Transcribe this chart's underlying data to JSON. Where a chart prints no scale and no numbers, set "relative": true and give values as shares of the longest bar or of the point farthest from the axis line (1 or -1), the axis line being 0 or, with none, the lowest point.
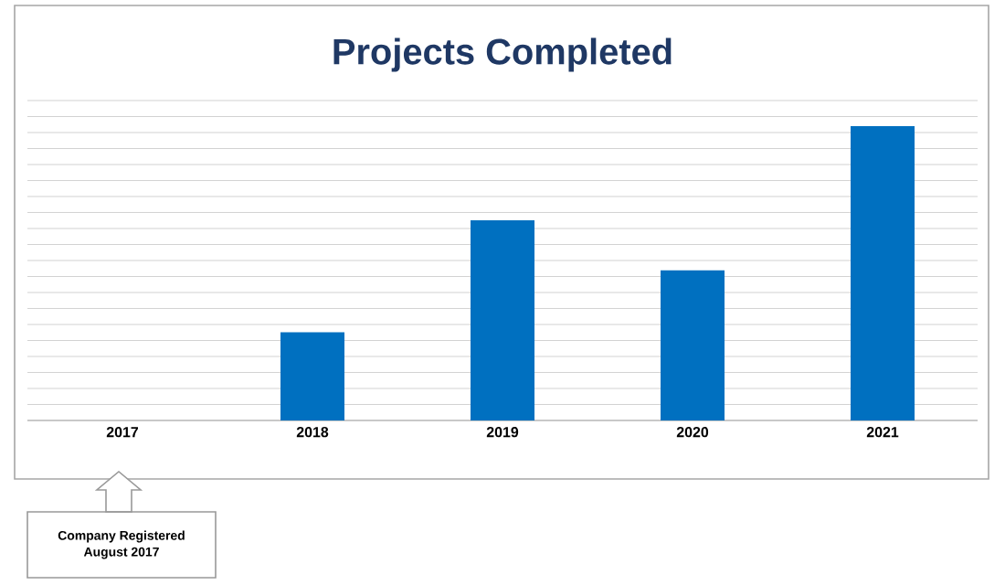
{
  "chart_data": {
    "type": "bar",
    "title": "Projects Completed",
    "categories": [
      "2017",
      "2018",
      "2019",
      "2020",
      "2021"
    ],
    "values": [
      0,
      0.3,
      0.68,
      0.51,
      1
    ],
    "color": "#0070c0",
    "relative": true,
    "grid": "y",
    "annotations": [
      "Company Registered\nAugust 2017"
    ]
  }
}
